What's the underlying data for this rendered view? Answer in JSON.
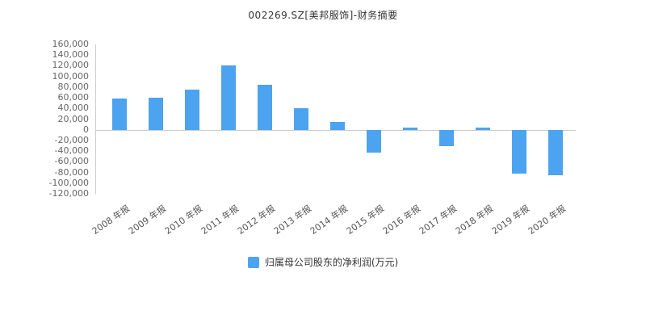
{
  "page": {
    "title": "002269.SZ[美邦服饰]-财务摘要"
  },
  "chart_data": {
    "type": "bar",
    "title": "002269.SZ[美邦服饰]-财务摘要",
    "categories": [
      "2008 年报",
      "2009 年报",
      "2010 年报",
      "2011 年报",
      "2012 年报",
      "2013 年报",
      "2014 年报",
      "2015 年报",
      "2016 年报",
      "2017 年报",
      "2018 年报",
      "2019 年报",
      "2020 年报"
    ],
    "series": [
      {
        "name": "归属母公司股东的净利润(万元)",
        "values": [
          58800,
          60300,
          74900,
          120600,
          85000,
          40500,
          14600,
          -43200,
          3600,
          -30600,
          4000,
          -82500,
          -85900
        ]
      }
    ],
    "xlabel": "",
    "ylabel": "",
    "ylim": [
      -120000,
      160000
    ],
    "ytick_step": 20000,
    "bar_color": "#4CA3EF",
    "legend_position": "bottom",
    "grid": false
  }
}
